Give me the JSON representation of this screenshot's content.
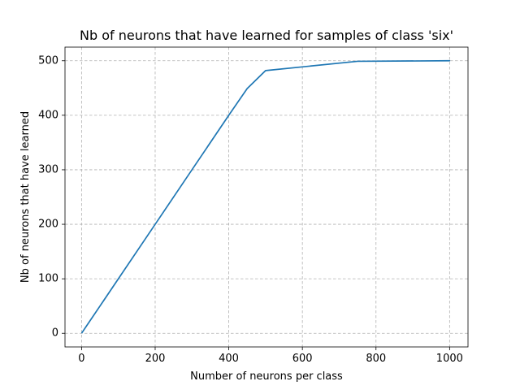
{
  "chart_data": {
    "type": "line",
    "title": "Nb of neurons that have learned for samples of class 'six'",
    "xlabel": "Number of neurons per class",
    "ylabel": "Nb of neurons that have learned",
    "xlim": [
      -45,
      1050
    ],
    "ylim": [
      -25,
      525
    ],
    "xticks": [
      0,
      200,
      400,
      600,
      800,
      1000
    ],
    "yticks": [
      0,
      100,
      200,
      300,
      400,
      500
    ],
    "xtick_labels": [
      "0",
      "200",
      "400",
      "600",
      "800",
      "1000"
    ],
    "ytick_labels": [
      "0",
      "100",
      "200",
      "300",
      "400",
      "500"
    ],
    "grid": true,
    "series": [
      {
        "color": "#1f77b4",
        "x": [
          1,
          10,
          50,
          100,
          200,
          300,
          400,
          450,
          500,
          750,
          1000
        ],
        "y": [
          1,
          10,
          50,
          100,
          200,
          300,
          400,
          449,
          482,
          499,
          500
        ]
      }
    ]
  }
}
